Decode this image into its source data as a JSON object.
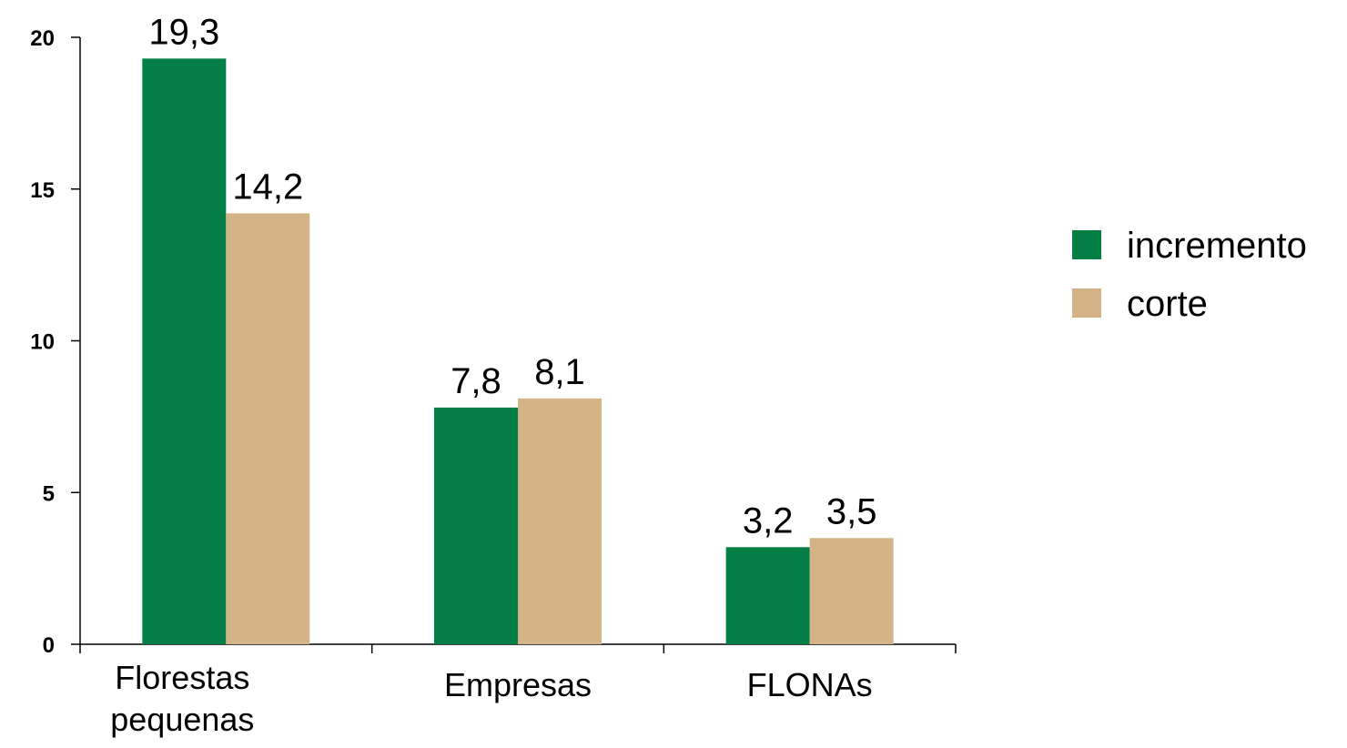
{
  "chart_data": {
    "type": "bar",
    "title": "",
    "xlabel": "",
    "ylabel": "",
    "categories": [
      "Florestas pequenas",
      "Empresas",
      "FLONAs"
    ],
    "series": [
      {
        "name": "incremento",
        "values": [
          19.3,
          7.8,
          3.2
        ],
        "labels": [
          "19,3",
          "7,8",
          "3,2"
        ],
        "color": "#037f46"
      },
      {
        "name": "corte",
        "values": [
          14.2,
          8.1,
          3.5
        ],
        "labels": [
          "14,2",
          "8,1",
          "3,5"
        ],
        "color": "#d4b487"
      }
    ],
    "ylim": [
      0,
      20
    ],
    "yticks": [
      0,
      5,
      10,
      15,
      20
    ],
    "grid": false,
    "legend_position": "right"
  }
}
